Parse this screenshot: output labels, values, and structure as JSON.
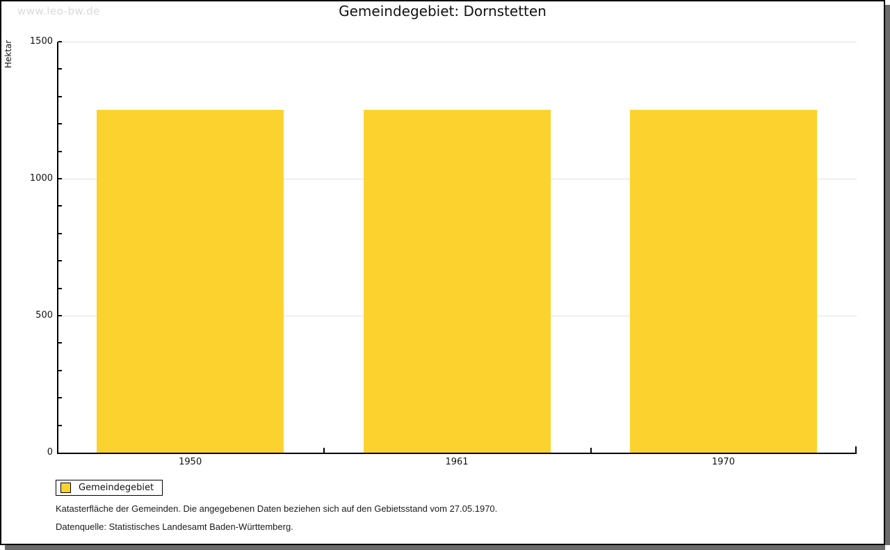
{
  "watermark": "www.leo-bw.de",
  "title": "Gemeindegebiet: Dornstetten",
  "legend": {
    "label": "Gemeindegebiet"
  },
  "footer": {
    "lines": [
      "Katasterfläche der Gemeinden. Die angegebenen Daten beziehen sich auf den Gebietsstand vom 27.05.1970.",
      "Datenquelle: Statistisches Landesamt Baden-Württemberg."
    ]
  },
  "colors": {
    "bar": "#fcd32e",
    "grid": "#e0e0e0",
    "axis": "#000000",
    "watermark": "#d9d9d9",
    "shadow": "#6b6b6b"
  },
  "chart_data": {
    "type": "bar",
    "title": "Gemeindegebiet: Dornstetten",
    "categories": [
      "1950",
      "1961",
      "1970"
    ],
    "series": [
      {
        "name": "Gemeindegebiet",
        "values": [
          1252,
          1252,
          1252
        ]
      }
    ],
    "xlabel": "",
    "ylabel": "Hektar",
    "ylim": [
      0,
      1500
    ],
    "ytick_major": 500,
    "ytick_minor": 100,
    "ytick_labels": [
      "0",
      "500",
      "1000",
      "1500"
    ],
    "grid": "horizontal-major",
    "legend_position": "bottom-left"
  }
}
